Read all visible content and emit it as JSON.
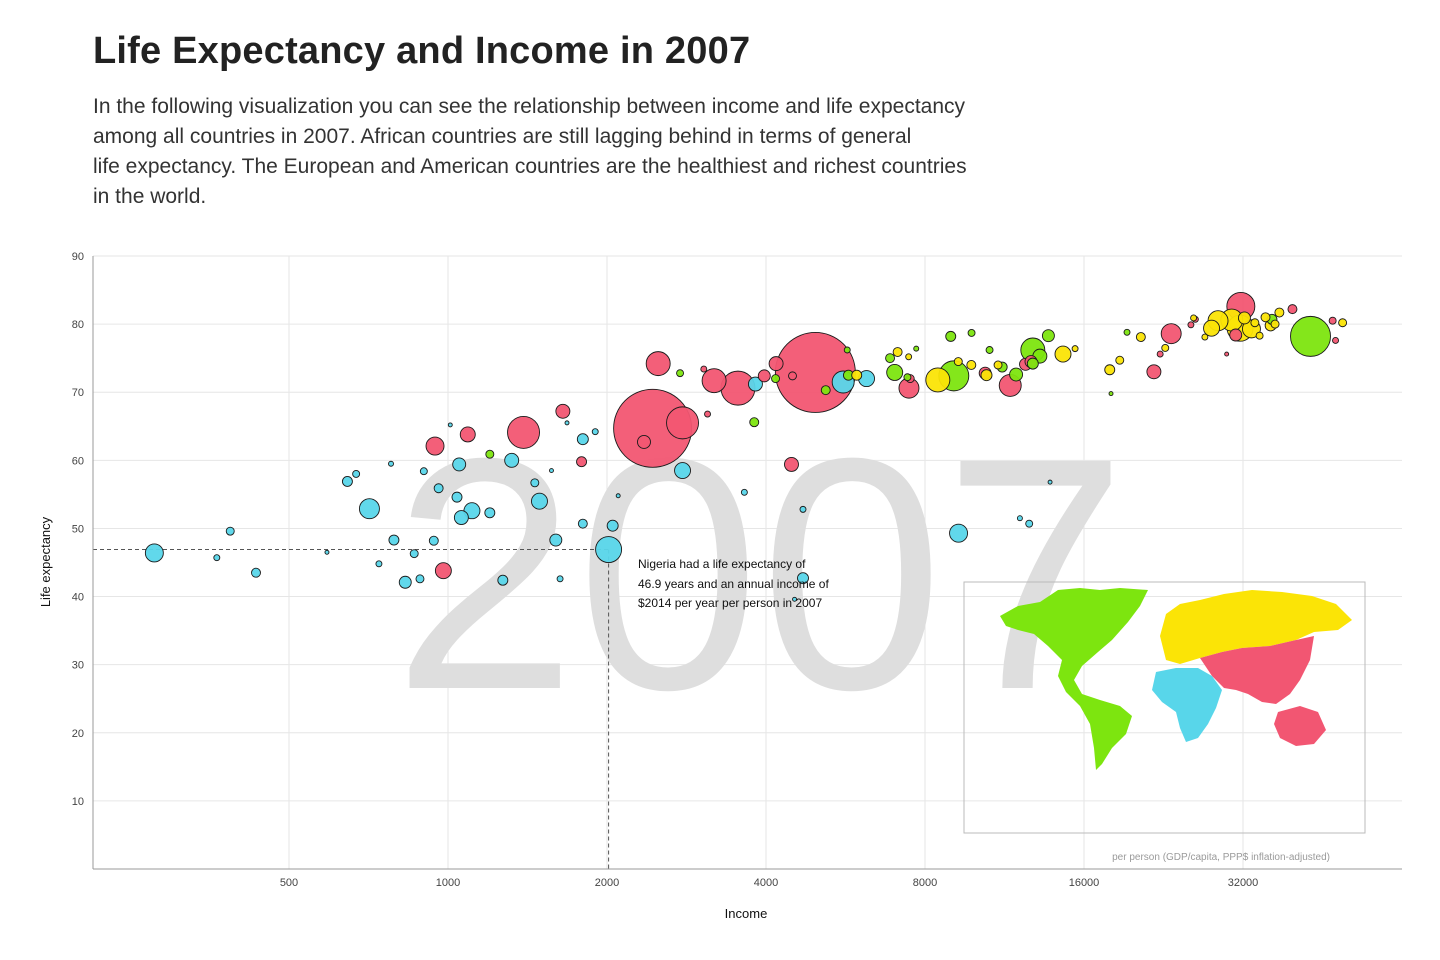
{
  "header": {
    "title": "Life Expectancy and Income in 2007",
    "subtitle_lines": [
      "In the following visualization you can see the relationship between income and life expectancy",
      "among all countries in 2007. African countries are still lagging behind in terms of general",
      "life expectancy. The European and American countries are the healthiest and richest countries",
      "in the world."
    ]
  },
  "chart_data": {
    "type": "scatter",
    "xlabel": "Income",
    "ylabel": "Life expectancy",
    "x_scale": "log2",
    "xlim": [
      200,
      60000
    ],
    "ylim": [
      0,
      90
    ],
    "x_ticks": [
      500,
      1000,
      2000,
      4000,
      8000,
      16000,
      32000
    ],
    "y_ticks": [
      10,
      20,
      30,
      40,
      50,
      60,
      70,
      80,
      90
    ],
    "grid": true,
    "year_watermark": "2007",
    "caption": "per person (GDP/capita, PPP$ inflation-adjusted)",
    "annotation": {
      "lines": [
        "Nigeria had a life expectancy of",
        "46.9 years and an annual income of",
        "$2014 per year per person in 2007"
      ],
      "x": 2014,
      "y": 46.9
    },
    "region_colors": {
      "africa": "#58d6ea",
      "asia": "#f25672",
      "americas": "#7de50f",
      "europe": "#fbe406"
    },
    "inset_map_colors": [
      "#7de50f",
      "#fbe406",
      "#f25672",
      "#58d6ea"
    ],
    "points": [
      {
        "x": 278,
        "y": 46.4,
        "r": 9,
        "region": "africa"
      },
      {
        "x": 387,
        "y": 49.6,
        "r": 4,
        "region": "africa"
      },
      {
        "x": 365,
        "y": 45.7,
        "r": 3,
        "region": "africa"
      },
      {
        "x": 433,
        "y": 43.5,
        "r": 4.5,
        "region": "africa"
      },
      {
        "x": 590,
        "y": 46.5,
        "r": 2,
        "region": "africa"
      },
      {
        "x": 645,
        "y": 56.9,
        "r": 5,
        "region": "africa"
      },
      {
        "x": 670,
        "y": 58.0,
        "r": 3.5,
        "region": "africa"
      },
      {
        "x": 710,
        "y": 52.9,
        "r": 10,
        "region": "africa"
      },
      {
        "x": 740,
        "y": 44.8,
        "r": 3,
        "region": "africa"
      },
      {
        "x": 780,
        "y": 59.5,
        "r": 2.5,
        "region": "africa"
      },
      {
        "x": 790,
        "y": 48.3,
        "r": 5,
        "region": "africa"
      },
      {
        "x": 863,
        "y": 46.3,
        "r": 4,
        "region": "africa"
      },
      {
        "x": 885,
        "y": 42.6,
        "r": 4,
        "region": "africa"
      },
      {
        "x": 900,
        "y": 58.4,
        "r": 3.5,
        "region": "africa"
      },
      {
        "x": 830,
        "y": 42.1,
        "r": 6,
        "region": "africa"
      },
      {
        "x": 940,
        "y": 48.2,
        "r": 4.5,
        "region": "africa"
      },
      {
        "x": 960,
        "y": 55.9,
        "r": 4.5,
        "region": "africa"
      },
      {
        "x": 1010,
        "y": 65.2,
        "r": 2,
        "region": "africa"
      },
      {
        "x": 1040,
        "y": 54.6,
        "r": 5,
        "region": "africa"
      },
      {
        "x": 1050,
        "y": 59.4,
        "r": 6.5,
        "region": "africa"
      },
      {
        "x": 1060,
        "y": 51.6,
        "r": 7,
        "region": "africa"
      },
      {
        "x": 1110,
        "y": 52.6,
        "r": 8,
        "region": "africa"
      },
      {
        "x": 1200,
        "y": 52.3,
        "r": 5,
        "region": "africa"
      },
      {
        "x": 1270,
        "y": 42.4,
        "r": 5,
        "region": "africa"
      },
      {
        "x": 1320,
        "y": 60.0,
        "r": 7,
        "region": "africa"
      },
      {
        "x": 1460,
        "y": 56.7,
        "r": 4,
        "region": "africa"
      },
      {
        "x": 1490,
        "y": 54.0,
        "r": 8,
        "region": "africa"
      },
      {
        "x": 1600,
        "y": 48.3,
        "r": 6,
        "region": "africa"
      },
      {
        "x": 1630,
        "y": 42.6,
        "r": 3,
        "region": "africa"
      },
      {
        "x": 1680,
        "y": 65.5,
        "r": 2,
        "region": "africa"
      },
      {
        "x": 1800,
        "y": 63.1,
        "r": 5.5,
        "region": "africa"
      },
      {
        "x": 1800,
        "y": 50.7,
        "r": 4.5,
        "region": "africa"
      },
      {
        "x": 1900,
        "y": 64.2,
        "r": 3,
        "region": "africa"
      },
      {
        "x": 2014,
        "y": 46.9,
        "r": 13,
        "region": "africa"
      },
      {
        "x": 2050,
        "y": 50.4,
        "r": 5.5,
        "region": "africa"
      },
      {
        "x": 2100,
        "y": 54.8,
        "r": 2,
        "region": "africa"
      },
      {
        "x": 2780,
        "y": 58.5,
        "r": 8,
        "region": "africa"
      },
      {
        "x": 3640,
        "y": 55.3,
        "r": 3,
        "region": "africa"
      },
      {
        "x": 3820,
        "y": 71.2,
        "r": 7,
        "region": "africa"
      },
      {
        "x": 4700,
        "y": 42.7,
        "r": 5.5,
        "region": "africa"
      },
      {
        "x": 4700,
        "y": 52.8,
        "r": 3,
        "region": "africa"
      },
      {
        "x": 4530,
        "y": 39.6,
        "r": 2,
        "region": "africa"
      },
      {
        "x": 5600,
        "y": 71.5,
        "r": 11,
        "region": "africa"
      },
      {
        "x": 6200,
        "y": 72.0,
        "r": 8,
        "region": "africa"
      },
      {
        "x": 9260,
        "y": 49.3,
        "r": 9,
        "region": "africa"
      },
      {
        "x": 12100,
        "y": 51.5,
        "r": 2.5,
        "region": "africa"
      },
      {
        "x": 12600,
        "y": 50.7,
        "r": 3.5,
        "region": "africa"
      },
      {
        "x": 13800,
        "y": 56.8,
        "r": 2,
        "region": "africa"
      },
      {
        "x": 1570,
        "y": 58.5,
        "r": 2,
        "region": "africa"
      },
      {
        "x": 945,
        "y": 62.1,
        "r": 9,
        "region": "asia"
      },
      {
        "x": 980,
        "y": 43.8,
        "r": 8,
        "region": "asia"
      },
      {
        "x": 1090,
        "y": 63.8,
        "r": 7.5,
        "region": "asia"
      },
      {
        "x": 1390,
        "y": 64.1,
        "r": 16,
        "region": "asia"
      },
      {
        "x": 1650,
        "y": 67.2,
        "r": 7,
        "region": "asia"
      },
      {
        "x": 1790,
        "y": 59.8,
        "r": 5,
        "region": "asia"
      },
      {
        "x": 2440,
        "y": 64.7,
        "r": 39,
        "region": "asia"
      },
      {
        "x": 2500,
        "y": 74.2,
        "r": 12,
        "region": "asia"
      },
      {
        "x": 2350,
        "y": 62.7,
        "r": 6.5,
        "region": "asia"
      },
      {
        "x": 2780,
        "y": 65.5,
        "r": 16,
        "region": "asia"
      },
      {
        "x": 3100,
        "y": 66.8,
        "r": 3,
        "region": "asia"
      },
      {
        "x": 3050,
        "y": 73.4,
        "r": 3,
        "region": "asia"
      },
      {
        "x": 3190,
        "y": 71.7,
        "r": 12,
        "region": "asia"
      },
      {
        "x": 3540,
        "y": 70.6,
        "r": 17,
        "region": "asia"
      },
      {
        "x": 3970,
        "y": 72.4,
        "r": 6,
        "region": "asia"
      },
      {
        "x": 4180,
        "y": 74.2,
        "r": 7,
        "region": "asia"
      },
      {
        "x": 4470,
        "y": 59.4,
        "r": 7,
        "region": "asia"
      },
      {
        "x": 4490,
        "y": 72.4,
        "r": 4,
        "region": "asia"
      },
      {
        "x": 4960,
        "y": 72.9,
        "r": 40,
        "region": "asia"
      },
      {
        "x": 7460,
        "y": 70.6,
        "r": 10,
        "region": "asia"
      },
      {
        "x": 7500,
        "y": 72.0,
        "r": 4,
        "region": "asia"
      },
      {
        "x": 10400,
        "y": 72.8,
        "r": 6,
        "region": "asia"
      },
      {
        "x": 11600,
        "y": 71.0,
        "r": 11,
        "region": "asia"
      },
      {
        "x": 12400,
        "y": 74.1,
        "r": 6,
        "region": "asia"
      },
      {
        "x": 12700,
        "y": 74.5,
        "r": 6,
        "region": "asia"
      },
      {
        "x": 21700,
        "y": 73.0,
        "r": 7,
        "region": "asia"
      },
      {
        "x": 23400,
        "y": 78.6,
        "r": 10,
        "region": "asia"
      },
      {
        "x": 25500,
        "y": 79.9,
        "r": 3,
        "region": "asia"
      },
      {
        "x": 22300,
        "y": 75.6,
        "r": 3,
        "region": "asia"
      },
      {
        "x": 26000,
        "y": 80.7,
        "r": 3,
        "region": "asia"
      },
      {
        "x": 29800,
        "y": 75.6,
        "r": 2,
        "region": "asia"
      },
      {
        "x": 31700,
        "y": 82.6,
        "r": 14,
        "region": "asia"
      },
      {
        "x": 31000,
        "y": 78.4,
        "r": 6,
        "region": "asia"
      },
      {
        "x": 39700,
        "y": 82.2,
        "r": 4.5,
        "region": "asia"
      },
      {
        "x": 47300,
        "y": 80.5,
        "r": 3.5,
        "region": "asia"
      },
      {
        "x": 47900,
        "y": 77.6,
        "r": 3,
        "region": "asia"
      },
      {
        "x": 1200,
        "y": 60.9,
        "r": 4,
        "region": "americas"
      },
      {
        "x": 2750,
        "y": 72.8,
        "r": 3.5,
        "region": "americas"
      },
      {
        "x": 3800,
        "y": 65.6,
        "r": 4.5,
        "region": "americas"
      },
      {
        "x": 4170,
        "y": 72.0,
        "r": 4,
        "region": "americas"
      },
      {
        "x": 5190,
        "y": 70.3,
        "r": 4.5,
        "region": "americas"
      },
      {
        "x": 5730,
        "y": 72.5,
        "r": 5,
        "region": "americas"
      },
      {
        "x": 5700,
        "y": 76.2,
        "r": 3,
        "region": "americas"
      },
      {
        "x": 6870,
        "y": 75.0,
        "r": 4.5,
        "region": "americas"
      },
      {
        "x": 7010,
        "y": 72.9,
        "r": 8,
        "region": "americas"
      },
      {
        "x": 7410,
        "y": 72.2,
        "r": 3.5,
        "region": "americas"
      },
      {
        "x": 7700,
        "y": 76.4,
        "r": 2.5,
        "region": "americas"
      },
      {
        "x": 8950,
        "y": 78.2,
        "r": 5,
        "region": "americas"
      },
      {
        "x": 9070,
        "y": 72.4,
        "r": 15,
        "region": "americas"
      },
      {
        "x": 9800,
        "y": 78.7,
        "r": 3.5,
        "region": "americas"
      },
      {
        "x": 10600,
        "y": 76.2,
        "r": 3.5,
        "region": "americas"
      },
      {
        "x": 11200,
        "y": 73.7,
        "r": 5,
        "region": "americas"
      },
      {
        "x": 11900,
        "y": 72.6,
        "r": 6.5,
        "region": "americas"
      },
      {
        "x": 12800,
        "y": 76.2,
        "r": 12,
        "region": "americas"
      },
      {
        "x": 12800,
        "y": 74.2,
        "r": 5.5,
        "region": "americas"
      },
      {
        "x": 13200,
        "y": 75.3,
        "r": 7,
        "region": "americas"
      },
      {
        "x": 13700,
        "y": 78.3,
        "r": 6,
        "region": "americas"
      },
      {
        "x": 18000,
        "y": 69.8,
        "r": 2,
        "region": "americas"
      },
      {
        "x": 19300,
        "y": 78.8,
        "r": 3,
        "region": "americas"
      },
      {
        "x": 36300,
        "y": 80.7,
        "r": 5,
        "region": "americas"
      },
      {
        "x": 42950,
        "y": 78.2,
        "r": 20,
        "region": "americas"
      },
      {
        "x": 5940,
        "y": 72.5,
        "r": 5,
        "region": "europe"
      },
      {
        "x": 7100,
        "y": 75.9,
        "r": 4.5,
        "region": "europe"
      },
      {
        "x": 7450,
        "y": 75.2,
        "r": 3,
        "region": "europe"
      },
      {
        "x": 8460,
        "y": 71.8,
        "r": 12,
        "region": "europe"
      },
      {
        "x": 9250,
        "y": 74.5,
        "r": 4,
        "region": "europe"
      },
      {
        "x": 9790,
        "y": 74.0,
        "r": 4.5,
        "region": "europe"
      },
      {
        "x": 10460,
        "y": 72.5,
        "r": 5.5,
        "region": "europe"
      },
      {
        "x": 11000,
        "y": 74.0,
        "r": 4,
        "region": "europe"
      },
      {
        "x": 14600,
        "y": 75.6,
        "r": 8,
        "region": "europe"
      },
      {
        "x": 15390,
        "y": 76.4,
        "r": 3,
        "region": "europe"
      },
      {
        "x": 17900,
        "y": 73.3,
        "r": 5,
        "region": "europe"
      },
      {
        "x": 18700,
        "y": 74.7,
        "r": 4,
        "region": "europe"
      },
      {
        "x": 22800,
        "y": 76.5,
        "r": 3.5,
        "region": "europe"
      },
      {
        "x": 20500,
        "y": 78.1,
        "r": 4.5,
        "region": "europe"
      },
      {
        "x": 25800,
        "y": 80.9,
        "r": 3,
        "region": "europe"
      },
      {
        "x": 27100,
        "y": 78.1,
        "r": 3,
        "region": "europe"
      },
      {
        "x": 27900,
        "y": 79.4,
        "r": 8,
        "region": "europe"
      },
      {
        "x": 28700,
        "y": 80.5,
        "r": 10,
        "region": "europe"
      },
      {
        "x": 30470,
        "y": 80.6,
        "r": 11,
        "region": "europe"
      },
      {
        "x": 31600,
        "y": 79.4,
        "r": 13,
        "region": "europe"
      },
      {
        "x": 32200,
        "y": 80.9,
        "r": 6,
        "region": "europe"
      },
      {
        "x": 33200,
        "y": 79.3,
        "r": 9,
        "region": "europe"
      },
      {
        "x": 33700,
        "y": 80.2,
        "r": 4,
        "region": "europe"
      },
      {
        "x": 34400,
        "y": 78.3,
        "r": 3.5,
        "region": "europe"
      },
      {
        "x": 35300,
        "y": 81.0,
        "r": 4.5,
        "region": "europe"
      },
      {
        "x": 36100,
        "y": 79.8,
        "r": 5.5,
        "region": "europe"
      },
      {
        "x": 36800,
        "y": 80.0,
        "r": 4,
        "region": "europe"
      },
      {
        "x": 37500,
        "y": 81.7,
        "r": 4.5,
        "region": "europe"
      },
      {
        "x": 49400,
        "y": 80.2,
        "r": 4,
        "region": "europe"
      }
    ]
  }
}
